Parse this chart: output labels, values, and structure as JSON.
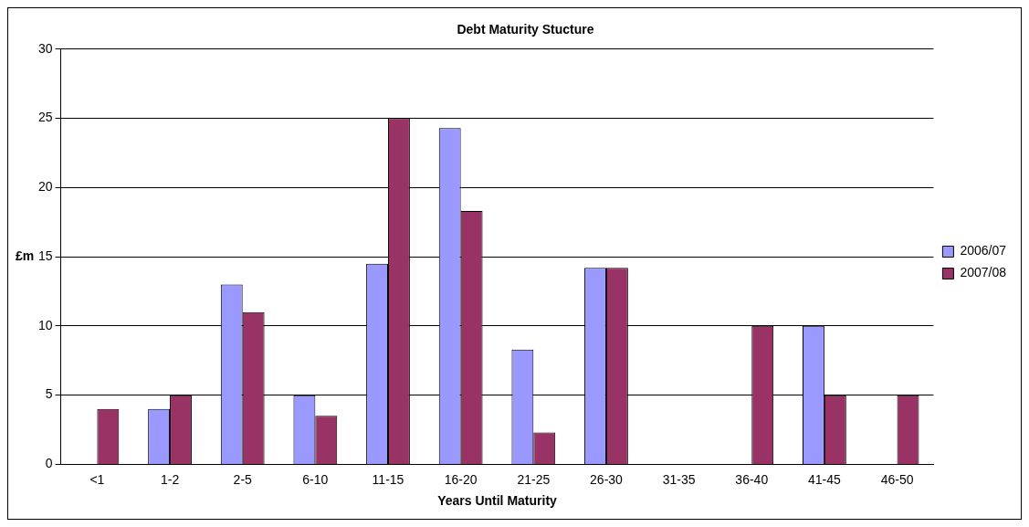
{
  "chart_data": {
    "type": "bar",
    "title": "Debt Maturity Stucture",
    "xlabel": "Years Until Maturity",
    "ylabel": "£m",
    "categories": [
      "<1",
      "1-2",
      "2-5",
      "6-10",
      "11-15",
      "16-20",
      "21-25",
      "26-30",
      "31-35",
      "36-40",
      "41-45",
      "46-50"
    ],
    "series": [
      {
        "name": "2006/07",
        "color": "#9999ff",
        "values": [
          0,
          4,
          13,
          5,
          14.5,
          24.3,
          8.3,
          14.2,
          0,
          0,
          10,
          0
        ]
      },
      {
        "name": "2007/08",
        "color": "#993366",
        "values": [
          4,
          5,
          11,
          3.5,
          25,
          18.3,
          2.3,
          14.2,
          0,
          10,
          5,
          5
        ]
      }
    ],
    "ylim": [
      0,
      30
    ],
    "yticks": [
      0,
      5,
      10,
      15,
      20,
      25,
      30
    ],
    "grid": "y",
    "legend": "right"
  }
}
